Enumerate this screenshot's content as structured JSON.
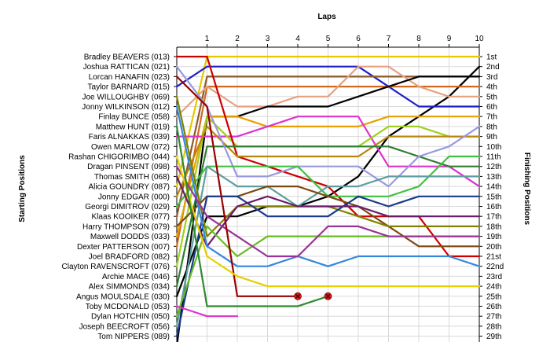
{
  "chart_data": {
    "type": "line",
    "title": "",
    "top_axis_label": "Laps",
    "left_axis_label": "Starting Positions",
    "right_axis_label": "Finishing Positions",
    "laps": [
      "1",
      "2",
      "3",
      "4",
      "5",
      "6",
      "7",
      "8",
      "9",
      "10"
    ],
    "starting_grid": [
      "Bradley BEAVERS (013)",
      "Joshua RATTICAN (021)",
      "Lorcan HANAFIN (023)",
      "Taylor BARNARD (015)",
      "Joe WILLOUGHBY (069)",
      "Jonny WILKINSON (012)",
      "Finlay BUNCE (058)",
      "Matthew HUNT (019)",
      "Faris ALNAKKAS (039)",
      "Owen MARLOW (072)",
      "Rashan CHIGORIMBO (044)",
      "Dragan PINSENT (098)",
      "Thomas SMITH (068)",
      "Alicia GOUNDRY (087)",
      "Jonny EDGAR (000)",
      "Georgi DIMITROV (029)",
      "Klaas KOOIKER (077)",
      "Harry THOMPSON (079)",
      "Maxwell DODDS (033)",
      "Dexter PATTERSON (007)",
      "Joel BRADFORD (082)",
      "Clayton RAVENSCROFT (076)",
      "Archie MACE (046)",
      "Alex SIMMONDS (034)",
      "Angus MOULSDALE (030)",
      "Toby MCDONALD (053)",
      "Dylan HOTCHIN (050)",
      "Joseph BEECROFT (056)",
      "Tom NIPPERS (089)"
    ],
    "finishing_labels": [
      "1st",
      "2nd",
      "3rd",
      "4th",
      "5th",
      "6th",
      "7th",
      "8th",
      "9th",
      "10th",
      "11th",
      "12th",
      "13th",
      "14th",
      "15th",
      "16th",
      "17th",
      "18th",
      "19th",
      "20th",
      "21st",
      "22nd",
      "23rd",
      "24th",
      "25th",
      "26th",
      "27th",
      "28th",
      "29th"
    ],
    "series": [
      {
        "start": 14,
        "positions": [
          1,
          1,
          1,
          1,
          1,
          1,
          1,
          1,
          1,
          1
        ],
        "color": "#e6c800"
      },
      {
        "start": 25,
        "positions": [
          17,
          17,
          16,
          16,
          15,
          13,
          9,
          7,
          5,
          2
        ],
        "color": "#000000"
      },
      {
        "start": 4,
        "positions": [
          2,
          2,
          2,
          2,
          2,
          2,
          4,
          6,
          6,
          6
        ],
        "color": "#1f1fc8"
      },
      {
        "start": 17,
        "positions": [
          3,
          3,
          3,
          3,
          3,
          3,
          3,
          3,
          3,
          3
        ],
        "color": "#8b5a2b"
      },
      {
        "start": 20,
        "positions": [
          4,
          4,
          4,
          4,
          4,
          4,
          4,
          4,
          4,
          4
        ],
        "color": "#d2691e"
      },
      {
        "start": 7,
        "positions": [
          4,
          6,
          6,
          5,
          5,
          2,
          2,
          4,
          5,
          5
        ],
        "color": "#e8a080"
      },
      {
        "start": 30,
        "positions": [
          7,
          7,
          6,
          6,
          6,
          5,
          4,
          3,
          3,
          3
        ],
        "color": "#000000"
      },
      {
        "start": 19,
        "positions": [
          7,
          7,
          8,
          8,
          8,
          8,
          7,
          7,
          7,
          7
        ],
        "color": "#e8a000"
      },
      {
        "start": 9,
        "positions": [
          9,
          9,
          8,
          7,
          7,
          7,
          12,
          12,
          12,
          14
        ],
        "color": "#dd33cc"
      },
      {
        "start": 22,
        "positions": [
          7,
          10,
          10,
          10,
          10,
          10,
          8,
          8,
          9,
          9
        ],
        "color": "#a0d020"
      },
      {
        "start": 1,
        "positions": [
          1,
          11,
          12,
          13,
          14,
          17,
          17,
          17,
          21,
          21
        ],
        "color": "#cc0000"
      },
      {
        "start": 15,
        "positions": [
          8,
          11,
          11,
          11,
          11,
          11,
          9,
          9,
          9,
          9
        ],
        "color": "#b8860b"
      },
      {
        "start": 24,
        "positions": [
          10,
          10,
          10,
          10,
          10,
          10,
          10,
          11,
          12,
          12
        ],
        "color": "#2e7d32"
      },
      {
        "start": 2,
        "positions": [
          6,
          13,
          13,
          12,
          12,
          12,
          14,
          11,
          10,
          8
        ],
        "color": "#9999dd"
      },
      {
        "start": 16,
        "positions": [
          12,
          12,
          12,
          12,
          15,
          15,
          15,
          14,
          11,
          11
        ],
        "color": "#40c040"
      },
      {
        "start": 28,
        "positions": [
          12,
          14,
          14,
          16,
          14,
          14,
          13,
          13,
          13,
          13
        ],
        "color": "#5f9ea0"
      },
      {
        "start": 18,
        "positions": [
          15,
          15,
          14,
          14,
          15,
          16,
          18,
          20,
          20,
          20
        ],
        "color": "#7b4a12"
      },
      {
        "start": 5,
        "positions": [
          19,
          16,
          16,
          16,
          16,
          17,
          18,
          18,
          18,
          18
        ],
        "color": "#808000"
      },
      {
        "start": 29,
        "positions": [
          15,
          15,
          17,
          17,
          17,
          15,
          16,
          15,
          15,
          15
        ],
        "color": "#1a3a8a"
      },
      {
        "start": 13,
        "positions": [
          20,
          16,
          15,
          16,
          16,
          16,
          17,
          17,
          17,
          17
        ],
        "color": "#6a1a6a"
      },
      {
        "start": 27,
        "positions": [
          18,
          21,
          19,
          19,
          19,
          19,
          19,
          19,
          19,
          19
        ],
        "color": "#66bb22"
      },
      {
        "start": 6,
        "positions": [
          20,
          22,
          22,
          21,
          22,
          21,
          21,
          21,
          21,
          22
        ],
        "color": "#3388dd"
      },
      {
        "start": 12,
        "positions": [
          17,
          19,
          21,
          21,
          18,
          18,
          19,
          19,
          19,
          19
        ],
        "color": "#993399"
      },
      {
        "start": 3,
        "positions": [
          6,
          25,
          25,
          25
        ],
        "color": "#990000",
        "retired_after_lap": 4
      },
      {
        "start": 11,
        "positions": [
          21,
          23,
          24,
          24,
          24,
          24,
          24,
          24,
          24,
          24
        ],
        "color": "#e6d000"
      },
      {
        "start": 8,
        "positions": [
          26,
          26,
          26,
          26,
          25
        ],
        "color": "#2e8b2e",
        "retired_after_lap": 5
      },
      {
        "start": 26,
        "positions": [
          27,
          27
        ],
        "color": "#dd33cc"
      }
    ]
  }
}
